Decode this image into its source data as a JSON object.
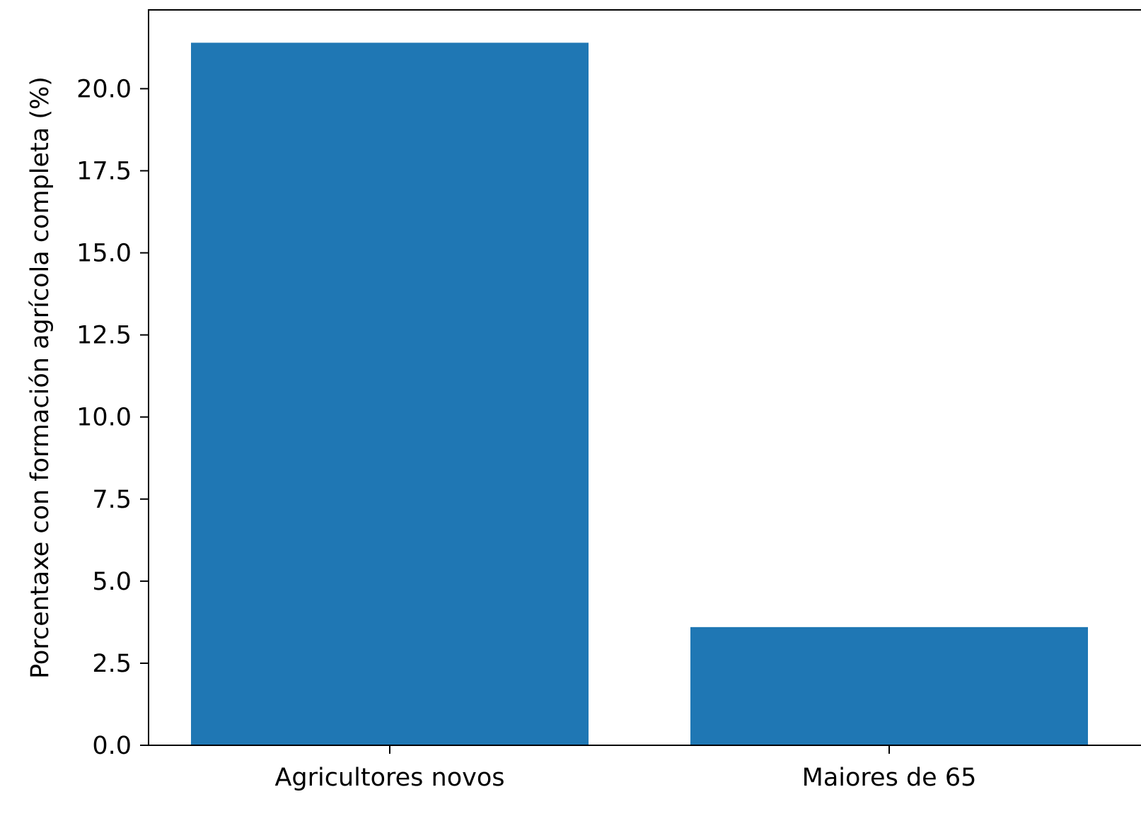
{
  "chart_data": {
    "type": "bar",
    "categories": [
      "Agricultores novos",
      "Maiores de 65"
    ],
    "values": [
      21.4,
      3.6
    ],
    "title": "",
    "xlabel": "",
    "ylabel": "Porcentaxe con formación agrícola completa (%)",
    "ylim": [
      0,
      22.4
    ],
    "yticks": [
      "0.0",
      "2.5",
      "5.0",
      "7.5",
      "10.0",
      "12.5",
      "15.0",
      "17.5",
      "20.0"
    ],
    "grid": false,
    "bar_color": "#1f77b4"
  }
}
